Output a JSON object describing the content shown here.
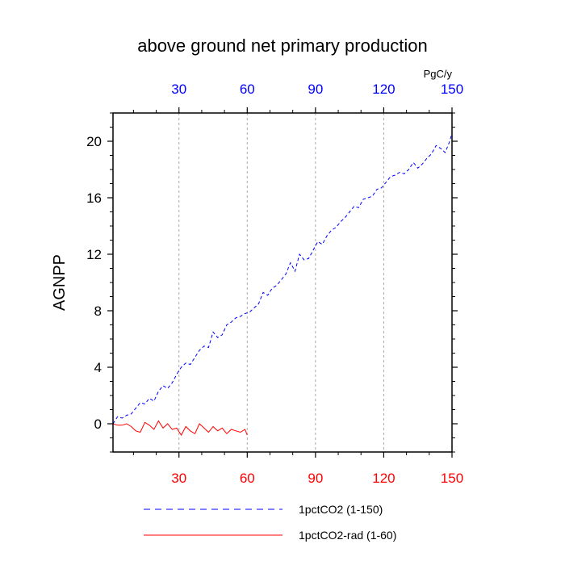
{
  "chart_data": {
    "type": "line",
    "title": "above ground net primary production",
    "ylabel": "AGNPP",
    "units": "PgC/y",
    "xlim": [
      1,
      150
    ],
    "ylim": [
      -2,
      22
    ],
    "x_ticks": [
      "30",
      "60",
      "90",
      "120",
      "150"
    ],
    "x_tick_values": [
      30,
      60,
      90,
      120,
      150
    ],
    "y_ticks": [
      "0",
      "4",
      "8",
      "12",
      "16",
      "20"
    ],
    "y_tick_values": [
      0,
      4,
      8,
      12,
      16,
      20
    ],
    "grid": "vertical dashed at top-axis ticks",
    "legend_placement": "bottom",
    "top_axis_color": "#0000ff",
    "bottom_axis_color": "#ff0000",
    "series": [
      {
        "name": "1pctCO2 (1-150)",
        "color": "#0000ff",
        "dash": "dashed",
        "x": [
          1,
          3,
          5,
          7,
          9,
          11,
          13,
          15,
          17,
          19,
          21,
          23,
          25,
          27,
          29,
          31,
          33,
          35,
          37,
          39,
          41,
          43,
          45,
          47,
          49,
          51,
          53,
          55,
          57,
          59,
          61,
          63,
          65,
          67,
          69,
          71,
          73,
          75,
          77,
          79,
          81,
          83,
          85,
          87,
          89,
          91,
          93,
          95,
          97,
          99,
          101,
          103,
          105,
          107,
          109,
          111,
          113,
          115,
          117,
          119,
          121,
          123,
          125,
          127,
          129,
          131,
          133,
          135,
          137,
          139,
          141,
          143,
          145,
          147,
          149,
          150
        ],
        "values": [
          0.0,
          0.5,
          0.4,
          0.6,
          0.7,
          1.1,
          1.5,
          1.4,
          1.8,
          1.6,
          2.3,
          2.7,
          2.5,
          2.9,
          3.5,
          4.0,
          4.3,
          4.2,
          4.7,
          5.2,
          5.5,
          5.4,
          6.5,
          6.1,
          6.3,
          7.0,
          7.2,
          7.5,
          7.6,
          7.8,
          7.9,
          8.2,
          8.5,
          9.3,
          9.1,
          9.6,
          9.8,
          10.2,
          10.6,
          11.4,
          10.8,
          12.0,
          11.6,
          11.7,
          12.3,
          12.9,
          12.7,
          13.3,
          13.7,
          13.9,
          14.3,
          14.6,
          15.0,
          15.4,
          15.3,
          15.9,
          16.0,
          16.1,
          16.6,
          16.7,
          17.1,
          17.5,
          17.6,
          17.8,
          17.7,
          18.0,
          18.5,
          18.1,
          18.4,
          18.8,
          19.1,
          19.7,
          19.5,
          19.2,
          20.0,
          20.6
        ]
      },
      {
        "name": "1pctCO2-rad (1-60)",
        "color": "#ff0000",
        "dash": "solid",
        "x": [
          1,
          3,
          5,
          7,
          9,
          11,
          13,
          15,
          17,
          19,
          21,
          23,
          25,
          27,
          29,
          31,
          33,
          35,
          37,
          39,
          41,
          43,
          45,
          47,
          49,
          51,
          53,
          55,
          57,
          59,
          60
        ],
        "values": [
          0.0,
          -0.1,
          -0.1,
          0.0,
          -0.2,
          -0.5,
          -0.6,
          0.1,
          -0.1,
          -0.4,
          0.2,
          -0.3,
          0.0,
          -0.4,
          -0.3,
          -0.8,
          -0.2,
          -0.5,
          -0.7,
          0.0,
          -0.3,
          -0.6,
          -0.2,
          -0.5,
          -0.3,
          -0.7,
          -0.4,
          -0.5,
          -0.6,
          -0.4,
          -0.8
        ]
      }
    ]
  }
}
